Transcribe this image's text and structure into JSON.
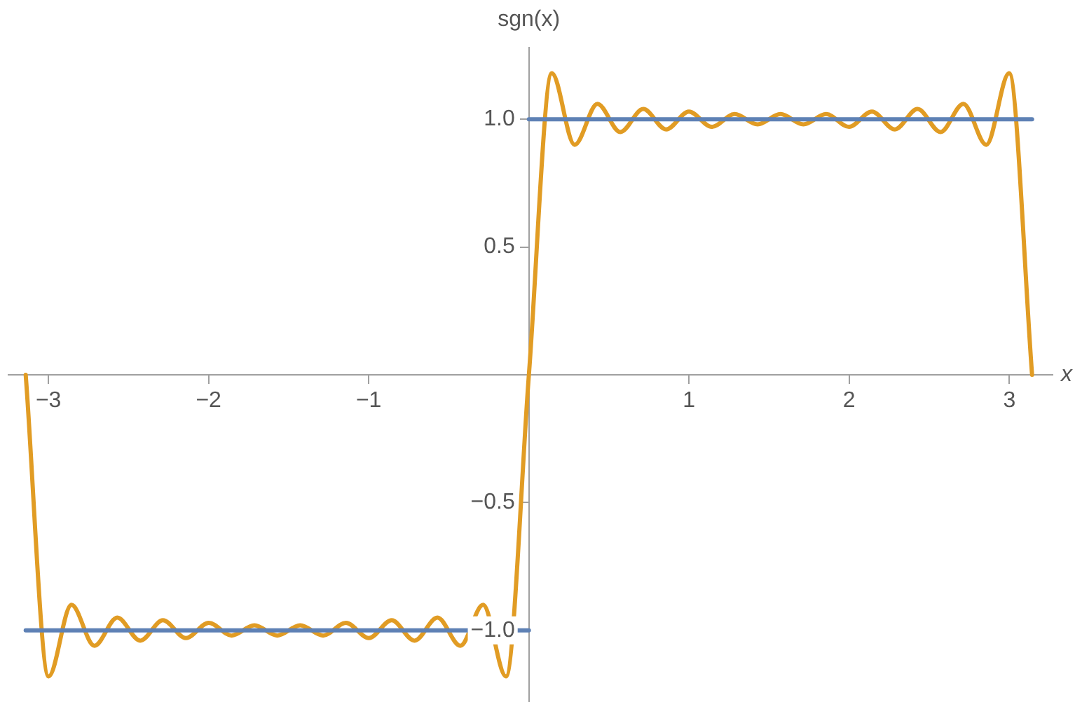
{
  "chart_data": {
    "type": "line",
    "xlabel": "x",
    "ylabel": "sgn(x)",
    "xlim": [
      -3.25,
      3.27
    ],
    "ylim": [
      -1.28,
      1.28
    ],
    "xticks": [
      {
        "value": -3,
        "label": "−3"
      },
      {
        "value": -2,
        "label": "−2"
      },
      {
        "value": -1,
        "label": "−1"
      },
      1,
      2,
      3
    ],
    "yticks": [
      {
        "value": -1,
        "label": "−1.0"
      },
      {
        "value": -0.5,
        "label": "−0.5"
      },
      {
        "value": 0.5,
        "label": "0.5"
      },
      {
        "value": 1,
        "label": "1.0"
      }
    ],
    "grid": false,
    "legend": false,
    "marker": "none",
    "line_style": "solid",
    "series": [
      {
        "color": "#5e81b5",
        "x": [
          -3.142,
          0
        ],
        "values": [
          -1,
          -1
        ]
      },
      {
        "color": "#5e81b5",
        "x": [
          0,
          3.142
        ],
        "values": [
          1,
          1
        ]
      },
      {
        "color": "#e19c24",
        "x": [
          -3.142,
          -2.999,
          -2.856,
          -2.713,
          -2.57,
          -2.427,
          -2.285,
          -2.142,
          -1.999,
          -1.856,
          -1.714,
          -1.571,
          -1.428,
          -1.285,
          -1.142,
          -0.999,
          -0.857,
          -0.714,
          -0.571,
          -0.428,
          -0.286,
          -0.143,
          0,
          0.143,
          0.286,
          0.428,
          0.571,
          0.714,
          0.857,
          0.999,
          1.142,
          1.285,
          1.428,
          1.571,
          1.714,
          1.856,
          1.999,
          2.142,
          2.285,
          2.427,
          2.57,
          2.713,
          2.856,
          2.999,
          3.142
        ],
        "values": [
          0,
          -1.18,
          -0.9,
          -1.06,
          -0.95,
          -1.04,
          -0.96,
          -1.03,
          -0.97,
          -1.02,
          -0.98,
          -1.02,
          -0.98,
          -1.02,
          -0.97,
          -1.03,
          -0.96,
          -1.04,
          -0.95,
          -1.06,
          -0.9,
          -1.18,
          0,
          1.18,
          0.9,
          1.06,
          0.95,
          1.04,
          0.96,
          1.03,
          0.97,
          1.02,
          0.98,
          1.02,
          0.98,
          1.02,
          0.97,
          1.03,
          0.96,
          1.04,
          0.95,
          1.06,
          0.9,
          1.18,
          0
        ]
      }
    ]
  }
}
